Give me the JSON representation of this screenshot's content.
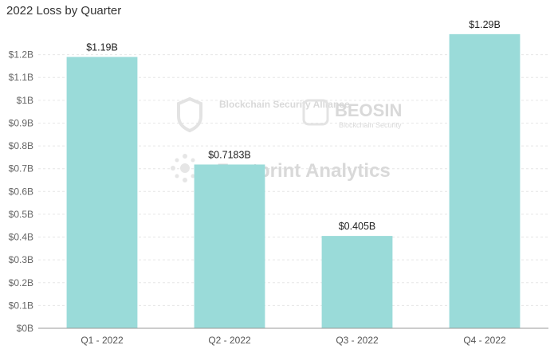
{
  "chart_data": {
    "type": "bar",
    "title": "2022 Loss by Quarter",
    "categories": [
      "Q1 - 2022",
      "Q2 - 2022",
      "Q3 - 2022",
      "Q4 - 2022"
    ],
    "values": [
      1.19,
      0.7183,
      0.405,
      1.29
    ],
    "data_labels": [
      "$1.19B",
      "$0.7183B",
      "$0.405B",
      "$1.29B"
    ],
    "ylim": [
      0,
      1.3
    ],
    "yticks": [
      0,
      0.1,
      0.2,
      0.3,
      0.4,
      0.5,
      0.6,
      0.7,
      0.8,
      0.9,
      1.0,
      1.1,
      1.2
    ],
    "ytick_labels": [
      "$0B",
      "$0.1B",
      "$0.2B",
      "$0.3B",
      "$0.4B",
      "$0.5B",
      "$0.6B",
      "$0.7B",
      "$0.8B",
      "$0.9B",
      "$1B",
      "$1.1B",
      "$1.2B"
    ],
    "grid": true,
    "bar_color": "#9adbd9"
  },
  "watermarks": {
    "alliance": "Blockchain Security Alliance",
    "beosin": "BEOSIN",
    "beosin_sub": "Blockchain Security",
    "footprint": "Footprint Analytics"
  }
}
